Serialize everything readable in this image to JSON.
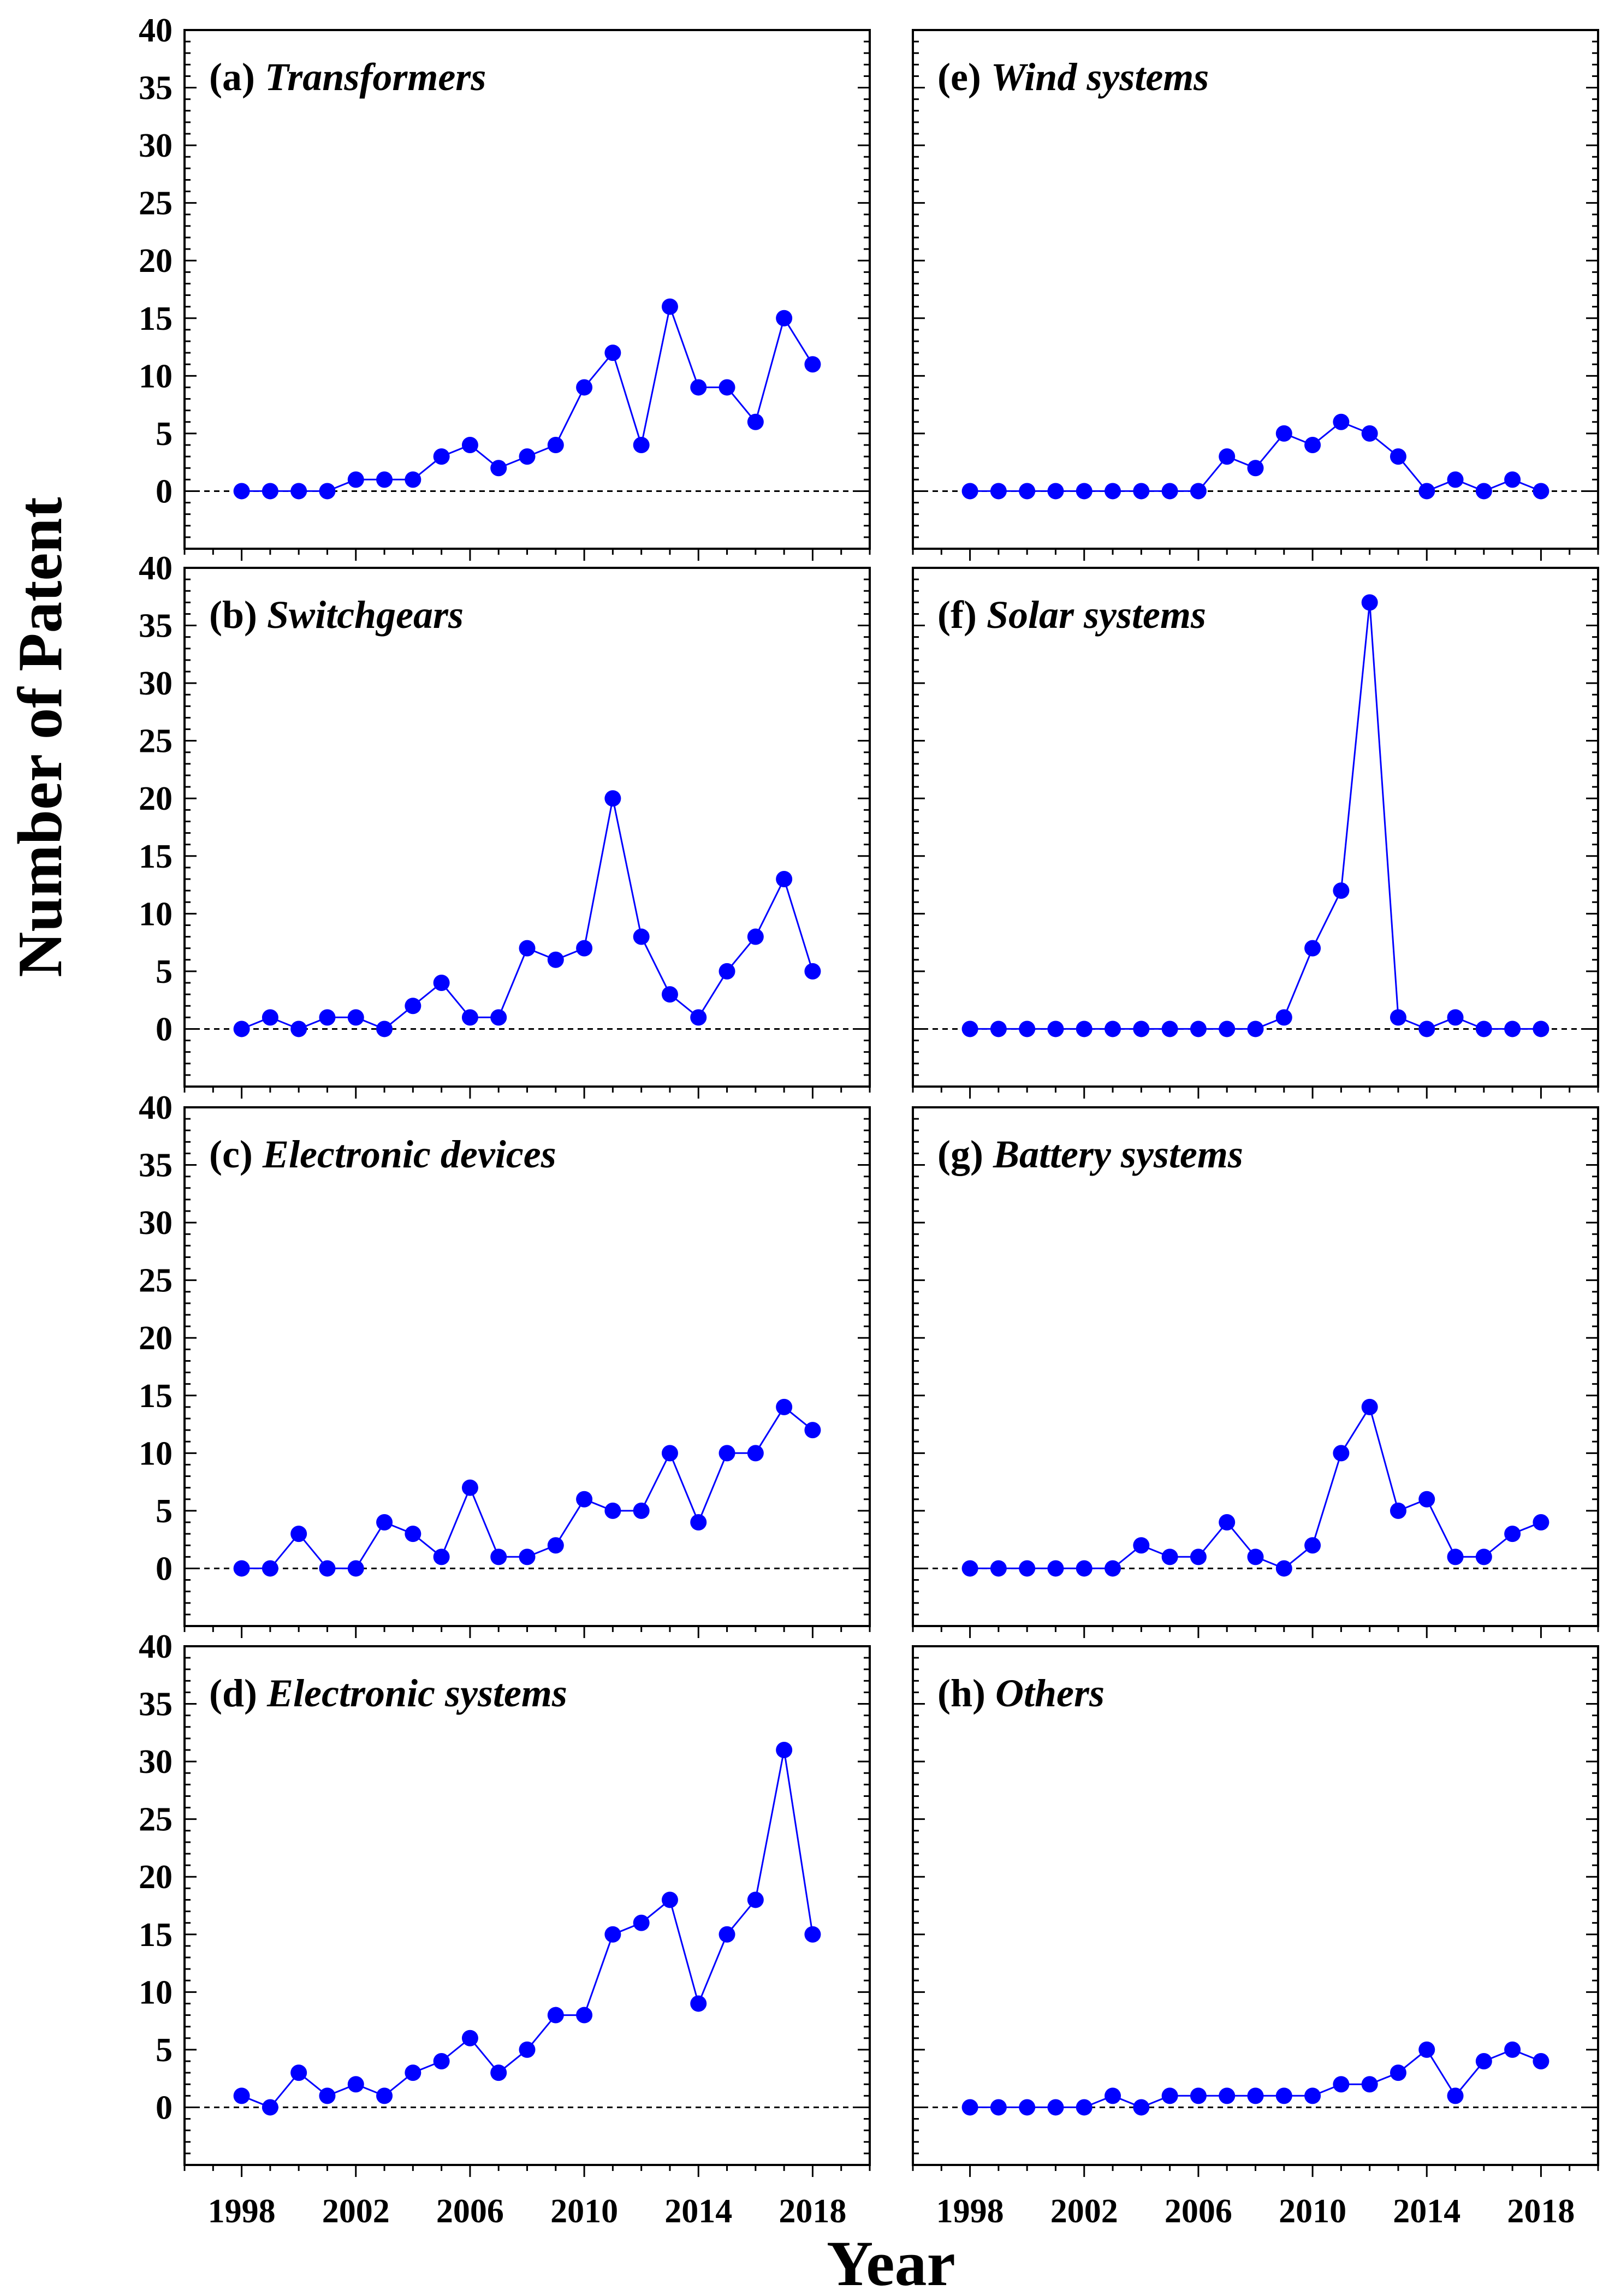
{
  "colors": {
    "series": "#0000ff",
    "axis": "#000000",
    "zeroline": "#000000"
  },
  "figure": {
    "xlabel": "Year",
    "ylabel": "Number of Patent"
  },
  "chart_data": [
    {
      "type": "line",
      "panel": "a",
      "id_label": "(a)",
      "title": "Transformers",
      "x": [
        1998,
        1999,
        2000,
        2001,
        2002,
        2003,
        2004,
        2005,
        2006,
        2007,
        2008,
        2009,
        2010,
        2011,
        2012,
        2013,
        2014,
        2015,
        2016,
        2017,
        2018
      ],
      "values": [
        0,
        0,
        0,
        0,
        1,
        1,
        1,
        3,
        4,
        2,
        3,
        4,
        9,
        12,
        4,
        16,
        9,
        9,
        6,
        15,
        11
      ],
      "xlim": [
        1996,
        2020
      ],
      "ylim": [
        -5,
        40
      ],
      "yticks": [
        0,
        5,
        10,
        15,
        20,
        25,
        30,
        35,
        40
      ],
      "ytick_labels": [
        "0",
        "5",
        "10",
        "15",
        "20",
        "25",
        "30",
        "35",
        "40"
      ],
      "xticks": [
        1998,
        2002,
        2006,
        2010,
        2014,
        2018
      ],
      "xtick_labels": [
        "1998",
        "2002",
        "2006",
        "2010",
        "2014",
        "2018"
      ],
      "show_xtick_labels": false
    },
    {
      "type": "line",
      "panel": "b",
      "id_label": "(b)",
      "title": "Switchgears",
      "x": [
        1998,
        1999,
        2000,
        2001,
        2002,
        2003,
        2004,
        2005,
        2006,
        2007,
        2008,
        2009,
        2010,
        2011,
        2012,
        2013,
        2014,
        2015,
        2016,
        2017,
        2018
      ],
      "values": [
        0,
        1,
        0,
        1,
        1,
        0,
        2,
        4,
        1,
        1,
        7,
        6,
        7,
        20,
        8,
        3,
        1,
        5,
        8,
        13,
        5
      ],
      "xlim": [
        1996,
        2020
      ],
      "ylim": [
        -5,
        40
      ],
      "yticks": [
        0,
        5,
        10,
        15,
        20,
        25,
        30,
        35,
        40
      ],
      "ytick_labels": [
        "0",
        "5",
        "10",
        "15",
        "20",
        "25",
        "30",
        "35",
        "40"
      ],
      "xticks": [
        1998,
        2002,
        2006,
        2010,
        2014,
        2018
      ],
      "xtick_labels": [
        "1998",
        "2002",
        "2006",
        "2010",
        "2014",
        "2018"
      ],
      "show_xtick_labels": false
    },
    {
      "type": "line",
      "panel": "c",
      "id_label": "(c)",
      "title": "Electronic devices",
      "x": [
        1998,
        1999,
        2000,
        2001,
        2002,
        2003,
        2004,
        2005,
        2006,
        2007,
        2008,
        2009,
        2010,
        2011,
        2012,
        2013,
        2014,
        2015,
        2016,
        2017,
        2018
      ],
      "values": [
        0,
        0,
        3,
        0,
        0,
        4,
        3,
        1,
        7,
        1,
        1,
        2,
        6,
        5,
        5,
        10,
        4,
        10,
        10,
        14,
        12
      ],
      "xlim": [
        1996,
        2020
      ],
      "ylim": [
        -5,
        40
      ],
      "yticks": [
        0,
        5,
        10,
        15,
        20,
        25,
        30,
        35,
        40
      ],
      "ytick_labels": [
        "0",
        "5",
        "10",
        "15",
        "20",
        "25",
        "30",
        "35",
        "40"
      ],
      "xticks": [
        1998,
        2002,
        2006,
        2010,
        2014,
        2018
      ],
      "xtick_labels": [
        "1998",
        "2002",
        "2006",
        "2010",
        "2014",
        "2018"
      ],
      "show_xtick_labels": false
    },
    {
      "type": "line",
      "panel": "d",
      "id_label": "(d)",
      "title": "Electronic systems",
      "x": [
        1998,
        1999,
        2000,
        2001,
        2002,
        2003,
        2004,
        2005,
        2006,
        2007,
        2008,
        2009,
        2010,
        2011,
        2012,
        2013,
        2014,
        2015,
        2016,
        2017,
        2018
      ],
      "values": [
        1,
        0,
        3,
        1,
        2,
        1,
        3,
        4,
        6,
        3,
        5,
        8,
        8,
        15,
        16,
        18,
        9,
        15,
        18,
        31,
        15
      ],
      "xlim": [
        1996,
        2020
      ],
      "ylim": [
        -5,
        40
      ],
      "yticks": [
        0,
        5,
        10,
        15,
        20,
        25,
        30,
        35,
        40
      ],
      "ytick_labels": [
        "0",
        "5",
        "10",
        "15",
        "20",
        "25",
        "30",
        "35",
        "40"
      ],
      "xticks": [
        1998,
        2002,
        2006,
        2010,
        2014,
        2018
      ],
      "xtick_labels": [
        "1998",
        "2002",
        "2006",
        "2010",
        "2014",
        "2018"
      ],
      "show_xtick_labels": true
    },
    {
      "type": "line",
      "panel": "e",
      "id_label": "(e)",
      "title": "Wind systems",
      "x": [
        1998,
        1999,
        2000,
        2001,
        2002,
        2003,
        2004,
        2005,
        2006,
        2007,
        2008,
        2009,
        2010,
        2011,
        2012,
        2013,
        2014,
        2015,
        2016,
        2017,
        2018
      ],
      "values": [
        0,
        0,
        0,
        0,
        0,
        0,
        0,
        0,
        0,
        3,
        2,
        5,
        4,
        6,
        5,
        3,
        0,
        1,
        0,
        1,
        0
      ],
      "xlim": [
        1996,
        2020
      ],
      "ylim": [
        -5,
        40
      ],
      "yticks": [],
      "ytick_labels": [],
      "xticks": [
        1998,
        2002,
        2006,
        2010,
        2014,
        2018
      ],
      "xtick_labels": [
        "1998",
        "2002",
        "2006",
        "2010",
        "2014",
        "2018"
      ],
      "show_xtick_labels": false
    },
    {
      "type": "line",
      "panel": "f",
      "id_label": "(f)",
      "title": "Solar systems",
      "x": [
        1998,
        1999,
        2000,
        2001,
        2002,
        2003,
        2004,
        2005,
        2006,
        2007,
        2008,
        2009,
        2010,
        2011,
        2012,
        2013,
        2014,
        2015,
        2016,
        2017,
        2018
      ],
      "values": [
        0,
        0,
        0,
        0,
        0,
        0,
        0,
        0,
        0,
        0,
        0,
        1,
        7,
        12,
        37,
        1,
        0,
        1,
        0,
        0,
        0
      ],
      "xlim": [
        1996,
        2020
      ],
      "ylim": [
        -5,
        40
      ],
      "yticks": [],
      "ytick_labels": [],
      "xticks": [
        1998,
        2002,
        2006,
        2010,
        2014,
        2018
      ],
      "xtick_labels": [
        "1998",
        "2002",
        "2006",
        "2010",
        "2014",
        "2018"
      ],
      "show_xtick_labels": false
    },
    {
      "type": "line",
      "panel": "g",
      "id_label": "(g)",
      "title": "Battery systems",
      "x": [
        1998,
        1999,
        2000,
        2001,
        2002,
        2003,
        2004,
        2005,
        2006,
        2007,
        2008,
        2009,
        2010,
        2011,
        2012,
        2013,
        2014,
        2015,
        2016,
        2017,
        2018
      ],
      "values": [
        0,
        0,
        0,
        0,
        0,
        0,
        2,
        1,
        1,
        4,
        1,
        0,
        2,
        10,
        14,
        5,
        6,
        1,
        1,
        3,
        4
      ],
      "xlim": [
        1996,
        2020
      ],
      "ylim": [
        -5,
        40
      ],
      "yticks": [],
      "ytick_labels": [],
      "xticks": [
        1998,
        2002,
        2006,
        2010,
        2014,
        2018
      ],
      "xtick_labels": [
        "1998",
        "2002",
        "2006",
        "2010",
        "2014",
        "2018"
      ],
      "show_xtick_labels": false
    },
    {
      "type": "line",
      "panel": "h",
      "id_label": "(h)",
      "title": "Others",
      "x": [
        1998,
        1999,
        2000,
        2001,
        2002,
        2003,
        2004,
        2005,
        2006,
        2007,
        2008,
        2009,
        2010,
        2011,
        2012,
        2013,
        2014,
        2015,
        2016,
        2017,
        2018
      ],
      "values": [
        0,
        0,
        0,
        0,
        0,
        1,
        0,
        1,
        1,
        1,
        1,
        1,
        1,
        2,
        2,
        3,
        5,
        1,
        4,
        5,
        4
      ],
      "xlim": [
        1996,
        2020
      ],
      "ylim": [
        -5,
        40
      ],
      "yticks": [],
      "ytick_labels": [],
      "xticks": [
        1998,
        2002,
        2006,
        2010,
        2014,
        2018
      ],
      "xtick_labels": [
        "1998",
        "2002",
        "2006",
        "2010",
        "2014",
        "2018"
      ],
      "show_xtick_labels": true
    }
  ]
}
